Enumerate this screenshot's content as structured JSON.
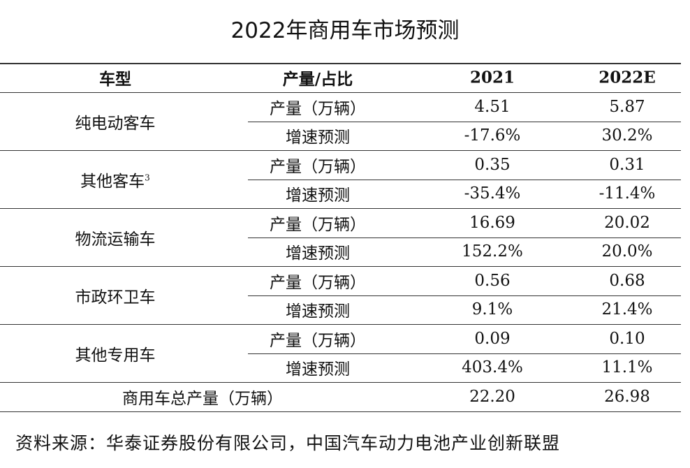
{
  "title": "2022年商用车市场预测",
  "table": {
    "header": [
      "车型",
      "产量/占比",
      "2021",
      "2022E"
    ],
    "groups": [
      {
        "name": "纯电动客车",
        "rows": [
          [
            "产量（万辆）",
            "4.51",
            "5.87"
          ],
          [
            "增速预测",
            "-17.6%",
            "30.2%"
          ]
        ]
      },
      {
        "name": "其他客车",
        "superscript": "3",
        "rows": [
          [
            "产量（万辆）",
            "0.35",
            "0.31"
          ],
          [
            "增速预测",
            "-35.4%",
            "-11.4%"
          ]
        ]
      },
      {
        "name": "物流运输车",
        "rows": [
          [
            "产量（万辆）",
            "16.69",
            "20.02"
          ],
          [
            "增速预测",
            "152.2%",
            "20.0%"
          ]
        ]
      },
      {
        "name": "市政环卫车",
        "rows": [
          [
            "产量（万辆）",
            "0.56",
            "0.68"
          ],
          [
            "增速预测",
            "9.1%",
            "21.4%"
          ]
        ]
      },
      {
        "name": "其他专用车",
        "rows": [
          [
            "产量（万辆）",
            "0.09",
            "0.10"
          ],
          [
            "增速预测",
            "403.4%",
            "11.1%"
          ]
        ]
      }
    ],
    "total": [
      "商用车总产量（万辆）",
      "22.20",
      "26.98"
    ]
  },
  "footer": "资料来源：华泰证券股份有限公司，中国汽车动力电池产业创新联盟"
}
